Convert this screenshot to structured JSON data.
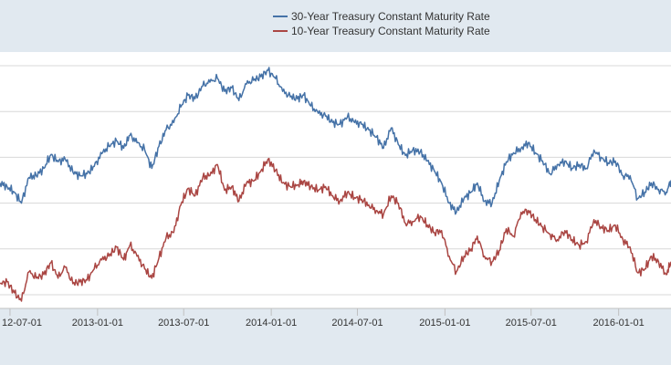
{
  "chart_data": {
    "type": "line",
    "title": "",
    "xlabel": "",
    "ylabel": "",
    "xlim": [
      "2012-06-10",
      "2016-04-20"
    ],
    "ylim": [
      1.35,
      4.15
    ],
    "grid": true,
    "legend": "top-center",
    "x_ticks": [
      "12-07-01",
      "2013-01-01",
      "2013-07-01",
      "2014-01-01",
      "2014-07-01",
      "2015-01-01",
      "2015-07-01",
      "2016-01-01"
    ],
    "x_tick_dates": [
      "2012-07-01",
      "2013-01-01",
      "2013-07-01",
      "2014-01-01",
      "2014-07-01",
      "2015-01-01",
      "2015-07-01",
      "2016-01-01"
    ],
    "series": [
      {
        "name": "30-Year Treasury Constant Maturity Rate",
        "color": "#4572a7",
        "points": [
          [
            "2012-06-10",
            2.72
          ],
          [
            "2012-06-25",
            2.68
          ],
          [
            "2012-07-10",
            2.62
          ],
          [
            "2012-07-25",
            2.5
          ],
          [
            "2012-08-10",
            2.78
          ],
          [
            "2012-08-25",
            2.8
          ],
          [
            "2012-09-10",
            2.88
          ],
          [
            "2012-09-25",
            3.03
          ],
          [
            "2012-10-10",
            2.95
          ],
          [
            "2012-10-25",
            2.98
          ],
          [
            "2012-11-10",
            2.84
          ],
          [
            "2012-11-25",
            2.8
          ],
          [
            "2012-12-10",
            2.82
          ],
          [
            "2012-12-25",
            2.9
          ],
          [
            "2013-01-10",
            3.04
          ],
          [
            "2013-01-25",
            3.12
          ],
          [
            "2013-02-10",
            3.18
          ],
          [
            "2013-02-25",
            3.1
          ],
          [
            "2013-03-10",
            3.24
          ],
          [
            "2013-03-25",
            3.16
          ],
          [
            "2013-04-10",
            3.08
          ],
          [
            "2013-04-25",
            2.88
          ],
          [
            "2013-05-10",
            3.12
          ],
          [
            "2013-05-25",
            3.3
          ],
          [
            "2013-06-10",
            3.38
          ],
          [
            "2013-06-25",
            3.55
          ],
          [
            "2013-07-10",
            3.68
          ],
          [
            "2013-07-25",
            3.64
          ],
          [
            "2013-08-10",
            3.78
          ],
          [
            "2013-08-25",
            3.82
          ],
          [
            "2013-09-10",
            3.86
          ],
          [
            "2013-09-25",
            3.72
          ],
          [
            "2013-10-10",
            3.76
          ],
          [
            "2013-10-25",
            3.62
          ],
          [
            "2013-11-10",
            3.8
          ],
          [
            "2013-11-25",
            3.84
          ],
          [
            "2013-12-10",
            3.88
          ],
          [
            "2013-12-25",
            3.95
          ],
          [
            "2014-01-10",
            3.86
          ],
          [
            "2014-01-25",
            3.72
          ],
          [
            "2014-02-10",
            3.66
          ],
          [
            "2014-02-25",
            3.64
          ],
          [
            "2014-03-10",
            3.68
          ],
          [
            "2014-03-25",
            3.56
          ],
          [
            "2014-04-10",
            3.48
          ],
          [
            "2014-04-25",
            3.45
          ],
          [
            "2014-05-10",
            3.38
          ],
          [
            "2014-05-25",
            3.36
          ],
          [
            "2014-06-10",
            3.44
          ],
          [
            "2014-06-25",
            3.38
          ],
          [
            "2014-07-10",
            3.36
          ],
          [
            "2014-07-25",
            3.3
          ],
          [
            "2014-08-10",
            3.22
          ],
          [
            "2014-08-25",
            3.1
          ],
          [
            "2014-09-10",
            3.32
          ],
          [
            "2014-09-25",
            3.14
          ],
          [
            "2014-10-10",
            3.02
          ],
          [
            "2014-10-25",
            3.08
          ],
          [
            "2014-11-10",
            3.06
          ],
          [
            "2014-11-25",
            2.96
          ],
          [
            "2014-12-10",
            2.85
          ],
          [
            "2014-12-25",
            2.72
          ],
          [
            "2015-01-10",
            2.5
          ],
          [
            "2015-01-25",
            2.4
          ],
          [
            "2015-02-10",
            2.55
          ],
          [
            "2015-02-25",
            2.62
          ],
          [
            "2015-03-10",
            2.72
          ],
          [
            "2015-03-25",
            2.52
          ],
          [
            "2015-04-10",
            2.5
          ],
          [
            "2015-04-25",
            2.74
          ],
          [
            "2015-05-10",
            2.95
          ],
          [
            "2015-05-25",
            3.05
          ],
          [
            "2015-06-10",
            3.1
          ],
          [
            "2015-06-25",
            3.16
          ],
          [
            "2015-07-10",
            3.05
          ],
          [
            "2015-07-25",
            2.96
          ],
          [
            "2015-08-10",
            2.82
          ],
          [
            "2015-08-25",
            2.92
          ],
          [
            "2015-09-10",
            2.96
          ],
          [
            "2015-09-25",
            2.88
          ],
          [
            "2015-10-10",
            2.92
          ],
          [
            "2015-10-25",
            2.88
          ],
          [
            "2015-11-10",
            3.08
          ],
          [
            "2015-11-25",
            3.0
          ],
          [
            "2015-12-10",
            2.94
          ],
          [
            "2015-12-25",
            2.96
          ],
          [
            "2016-01-10",
            2.8
          ],
          [
            "2016-01-25",
            2.8
          ],
          [
            "2016-02-10",
            2.55
          ],
          [
            "2016-02-25",
            2.62
          ],
          [
            "2016-03-10",
            2.72
          ],
          [
            "2016-03-25",
            2.65
          ],
          [
            "2016-04-10",
            2.62
          ],
          [
            "2016-04-20",
            2.75
          ]
        ]
      },
      {
        "name": "10-Year Treasury Constant Maturity Rate",
        "color": "#aa4643",
        "points": [
          [
            "2012-06-10",
            1.62
          ],
          [
            "2012-06-25",
            1.64
          ],
          [
            "2012-07-10",
            1.52
          ],
          [
            "2012-07-25",
            1.43
          ],
          [
            "2012-08-10",
            1.75
          ],
          [
            "2012-08-25",
            1.68
          ],
          [
            "2012-09-10",
            1.72
          ],
          [
            "2012-09-25",
            1.85
          ],
          [
            "2012-10-10",
            1.68
          ],
          [
            "2012-10-25",
            1.8
          ],
          [
            "2012-11-10",
            1.62
          ],
          [
            "2012-11-25",
            1.64
          ],
          [
            "2012-12-10",
            1.66
          ],
          [
            "2012-12-25",
            1.78
          ],
          [
            "2013-01-10",
            1.88
          ],
          [
            "2013-01-25",
            1.92
          ],
          [
            "2013-02-10",
            2.02
          ],
          [
            "2013-02-25",
            1.88
          ],
          [
            "2013-03-10",
            2.04
          ],
          [
            "2013-03-25",
            1.92
          ],
          [
            "2013-04-10",
            1.78
          ],
          [
            "2013-04-25",
            1.68
          ],
          [
            "2013-05-10",
            1.9
          ],
          [
            "2013-05-25",
            2.12
          ],
          [
            "2013-06-10",
            2.18
          ],
          [
            "2013-06-25",
            2.48
          ],
          [
            "2013-07-10",
            2.66
          ],
          [
            "2013-07-25",
            2.58
          ],
          [
            "2013-08-10",
            2.78
          ],
          [
            "2013-08-25",
            2.8
          ],
          [
            "2013-09-10",
            2.92
          ],
          [
            "2013-09-25",
            2.64
          ],
          [
            "2013-10-10",
            2.68
          ],
          [
            "2013-10-25",
            2.52
          ],
          [
            "2013-11-10",
            2.72
          ],
          [
            "2013-11-25",
            2.74
          ],
          [
            "2013-12-10",
            2.85
          ],
          [
            "2013-12-25",
            2.98
          ],
          [
            "2014-01-10",
            2.86
          ],
          [
            "2014-01-25",
            2.72
          ],
          [
            "2014-02-10",
            2.68
          ],
          [
            "2014-02-25",
            2.7
          ],
          [
            "2014-03-10",
            2.74
          ],
          [
            "2014-03-25",
            2.68
          ],
          [
            "2014-04-10",
            2.64
          ],
          [
            "2014-04-25",
            2.68
          ],
          [
            "2014-05-10",
            2.58
          ],
          [
            "2014-05-25",
            2.52
          ],
          [
            "2014-06-10",
            2.62
          ],
          [
            "2014-06-25",
            2.56
          ],
          [
            "2014-07-10",
            2.54
          ],
          [
            "2014-07-25",
            2.48
          ],
          [
            "2014-08-10",
            2.42
          ],
          [
            "2014-08-25",
            2.38
          ],
          [
            "2014-09-10",
            2.58
          ],
          [
            "2014-09-25",
            2.5
          ],
          [
            "2014-10-10",
            2.28
          ],
          [
            "2014-10-25",
            2.3
          ],
          [
            "2014-11-10",
            2.36
          ],
          [
            "2014-11-25",
            2.26
          ],
          [
            "2014-12-10",
            2.18
          ],
          [
            "2014-12-25",
            2.2
          ],
          [
            "2015-01-10",
            1.92
          ],
          [
            "2015-01-25",
            1.75
          ],
          [
            "2015-02-10",
            1.92
          ],
          [
            "2015-02-25",
            2.0
          ],
          [
            "2015-03-10",
            2.14
          ],
          [
            "2015-03-25",
            1.92
          ],
          [
            "2015-04-10",
            1.86
          ],
          [
            "2015-04-25",
            1.98
          ],
          [
            "2015-05-10",
            2.22
          ],
          [
            "2015-05-25",
            2.14
          ],
          [
            "2015-06-10",
            2.4
          ],
          [
            "2015-06-25",
            2.42
          ],
          [
            "2015-07-10",
            2.32
          ],
          [
            "2015-07-25",
            2.24
          ],
          [
            "2015-08-10",
            2.16
          ],
          [
            "2015-08-25",
            2.1
          ],
          [
            "2015-09-10",
            2.2
          ],
          [
            "2015-09-25",
            2.1
          ],
          [
            "2015-10-10",
            2.04
          ],
          [
            "2015-10-25",
            2.08
          ],
          [
            "2015-11-10",
            2.32
          ],
          [
            "2015-11-25",
            2.24
          ],
          [
            "2015-12-10",
            2.2
          ],
          [
            "2015-12-25",
            2.26
          ],
          [
            "2016-01-10",
            2.1
          ],
          [
            "2016-01-25",
            2.02
          ],
          [
            "2016-02-10",
            1.74
          ],
          [
            "2016-02-25",
            1.78
          ],
          [
            "2016-03-10",
            1.92
          ],
          [
            "2016-03-25",
            1.86
          ],
          [
            "2016-04-10",
            1.72
          ],
          [
            "2016-04-20",
            1.86
          ]
        ]
      }
    ]
  }
}
